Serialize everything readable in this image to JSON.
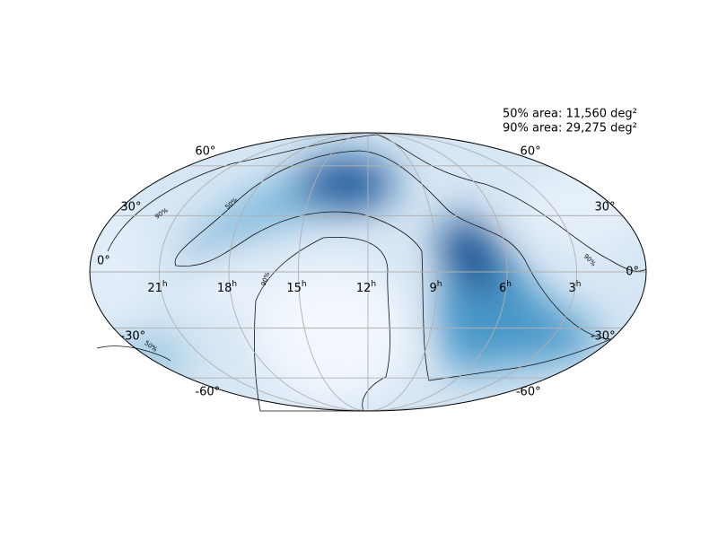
{
  "annotation": [
    "50% area: 11,560 deg²",
    "90% area: 29,275 deg²"
  ],
  "ra_ticks": [
    {
      "value": 21,
      "label": "21",
      "sup": "h"
    },
    {
      "value": 18,
      "label": "18",
      "sup": "h"
    },
    {
      "value": 15,
      "label": "15",
      "sup": "h"
    },
    {
      "value": 12,
      "label": "12",
      "sup": "h"
    },
    {
      "value": 9,
      "label": "9",
      "sup": "h"
    },
    {
      "value": 6,
      "label": "6",
      "sup": "h"
    },
    {
      "value": 3,
      "label": "3",
      "sup": "h"
    }
  ],
  "dec_ticks": [
    {
      "value": 60,
      "label": "60°"
    },
    {
      "value": 30,
      "label": "30°"
    },
    {
      "value": 0,
      "label": "0°"
    },
    {
      "value": -30,
      "label": "-30°"
    },
    {
      "value": -60,
      "label": "-60°"
    }
  ],
  "contour_labels": [
    "90%",
    "50%",
    "90%",
    "90%",
    "50%"
  ]
}
